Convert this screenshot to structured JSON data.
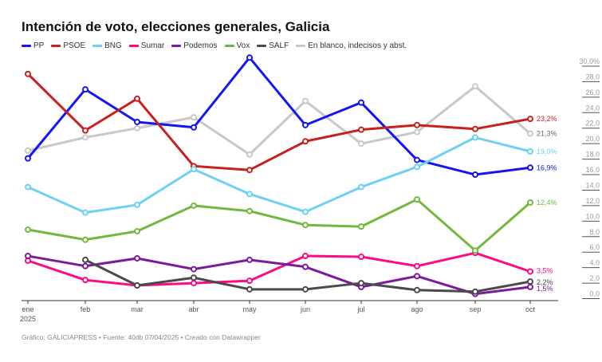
{
  "title": "Intención de voto, elecciones generales, Galicia",
  "footer": "Gráfico: GALICIAPRESS • Fuente: 40db 07/04/2025 • Creado con Datawrapper",
  "chart_data": {
    "type": "line",
    "title": "Intención de voto, elecciones generales, Galicia",
    "x": [
      "ene",
      "feb",
      "mar",
      "abr",
      "may",
      "jun",
      "jul",
      "ago",
      "sep",
      "oct"
    ],
    "x_year_label": "2025",
    "ylim": [
      0,
      30
    ],
    "yticks": [
      "0,0",
      "2,0",
      "4,0",
      "6,0",
      "8,0",
      "10,0",
      "12,0",
      "14,0",
      "16,0",
      "18,0",
      "20,0",
      "22,0",
      "24,0",
      "26,0",
      "28,0",
      "30,0%"
    ],
    "y_axis_position": "right",
    "grid": false,
    "legend": "top",
    "series": [
      {
        "name": "PP",
        "color": "#1414f5",
        "values": [
          18.1,
          27.0,
          22.8,
          22.1,
          31.1,
          22.4,
          25.3,
          17.9,
          16.0,
          16.9
        ],
        "end_label": "16,9%"
      },
      {
        "name": "PSOE",
        "color": "#c8201c",
        "values": [
          29.0,
          21.7,
          25.8,
          17.1,
          16.6,
          20.3,
          21.8,
          22.4,
          21.9,
          23.2
        ],
        "end_label": "23,2%"
      },
      {
        "name": "BNG",
        "color": "#6dd0f5",
        "values": [
          14.4,
          11.1,
          12.1,
          16.7,
          13.5,
          11.2,
          14.4,
          17.0,
          20.8,
          19.0
        ],
        "end_label": "19,0%"
      },
      {
        "name": "Sumar",
        "color": "#ff0a84",
        "values": [
          4.9,
          2.4,
          1.7,
          2.0,
          2.3,
          5.5,
          5.4,
          4.2,
          5.9,
          3.5
        ],
        "end_label": "3,5%"
      },
      {
        "name": "Podemos",
        "color": "#7a1a9c",
        "values": [
          5.5,
          4.2,
          5.2,
          3.8,
          5.0,
          4.1,
          1.5,
          2.9,
          0.6,
          1.5
        ],
        "end_label": "1,5%"
      },
      {
        "name": "Vox",
        "color": "#72b83f",
        "values": [
          8.9,
          7.6,
          8.7,
          12.0,
          11.3,
          9.5,
          9.3,
          12.8,
          6.2,
          12.4
        ],
        "end_label": "12,4%"
      },
      {
        "name": "SALF",
        "color": "#4a4a4a",
        "values": [
          null,
          5.0,
          1.7,
          2.7,
          1.2,
          1.2,
          2.0,
          1.1,
          0.9,
          2.2
        ],
        "end_label": "2,2%"
      },
      {
        "name": "En blanco, indecisos y abst.",
        "color": "#c8c8c8",
        "values": [
          19.1,
          20.8,
          22.0,
          23.4,
          18.6,
          25.5,
          20.0,
          21.5,
          27.4,
          21.3
        ],
        "end_label": "21,3%"
      }
    ]
  }
}
